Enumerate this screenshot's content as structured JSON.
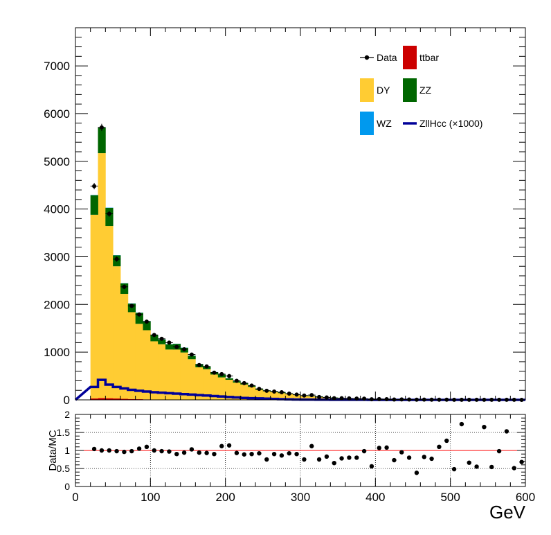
{
  "chart_data": [
    {
      "type": "bar",
      "stacked": true,
      "x_bin_width": 10,
      "xlim": [
        0,
        600
      ],
      "ylim": [
        0,
        7800
      ],
      "y_ticks": [
        "0",
        "1000",
        "2000",
        "3000",
        "4000",
        "5000",
        "6000",
        "7000"
      ],
      "y_tick_values": [
        0,
        1000,
        2000,
        3000,
        4000,
        5000,
        6000,
        7000
      ],
      "bin_low_edges": [
        20,
        30,
        40,
        50,
        60,
        70,
        80,
        90,
        100,
        110,
        120,
        130,
        140,
        150,
        160,
        170,
        180,
        190,
        200,
        210,
        220,
        230,
        240,
        250,
        260,
        270,
        280,
        290,
        300,
        310,
        320,
        330,
        340,
        350,
        360,
        370,
        380,
        390,
        400,
        410,
        420,
        430,
        440,
        450,
        460,
        470,
        480,
        490,
        500,
        510,
        520,
        530,
        540,
        550,
        560,
        570,
        580,
        590
      ],
      "series": [
        {
          "name": "ttbar",
          "color": "#cc0000",
          "values": [
            30,
            40,
            35,
            30,
            22,
            18,
            14,
            10,
            8,
            6,
            5,
            4,
            3,
            3,
            2,
            2,
            1,
            1,
            1,
            1,
            1,
            1,
            0,
            0,
            0,
            0,
            0,
            0,
            0,
            0,
            0,
            0,
            0,
            0,
            0,
            0,
            0,
            0,
            0,
            0,
            0,
            0,
            0,
            0,
            0,
            0,
            0,
            0,
            0,
            0,
            0,
            0,
            0,
            0,
            0,
            0,
            0,
            0
          ]
        },
        {
          "name": "DY",
          "color": "#ffcc33",
          "values": [
            3850,
            5130,
            3610,
            2770,
            2200,
            1820,
            1580,
            1450,
            1220,
            1160,
            1050,
            1050,
            990,
            850,
            680,
            640,
            530,
            470,
            420,
            360,
            320,
            270,
            210,
            180,
            160,
            140,
            120,
            100,
            80,
            75,
            65,
            50,
            45,
            38,
            33,
            28,
            25,
            21,
            18,
            15,
            13,
            11,
            10,
            8,
            7,
            6,
            5,
            4,
            4,
            3,
            3,
            2,
            2,
            2,
            2,
            1,
            1,
            1
          ]
        },
        {
          "name": "ZZ",
          "color": "#006600",
          "values": [
            410,
            540,
            380,
            230,
            220,
            180,
            230,
            190,
            130,
            100,
            110,
            120,
            100,
            70,
            70,
            60,
            50,
            60,
            30,
            30,
            30,
            25,
            25,
            20,
            18,
            16,
            13,
            12,
            10,
            9,
            8,
            7,
            6,
            5,
            4,
            4,
            3,
            3,
            3,
            2,
            2,
            2,
            2,
            1,
            1,
            1,
            1,
            1,
            1,
            1,
            1,
            1,
            1,
            1,
            1,
            0,
            0,
            0
          ]
        },
        {
          "name": "WZ",
          "color": "#0099ee",
          "values": [
            5,
            5,
            5,
            5,
            4,
            4,
            4,
            3,
            3,
            3,
            3,
            3,
            3,
            3,
            2,
            2,
            2,
            2,
            2,
            2,
            2,
            2,
            1,
            1,
            1,
            1,
            1,
            1,
            1,
            1,
            1,
            1,
            0,
            0,
            0,
            0,
            0,
            0,
            0,
            0,
            0,
            0,
            0,
            0,
            0,
            0,
            0,
            0,
            0,
            0,
            0,
            0,
            0,
            0,
            0,
            0,
            0,
            0
          ]
        }
      ],
      "signal": {
        "name": "ZllHcc (×1000)",
        "color": "#000099",
        "values": [
          270,
          420,
          320,
          270,
          240,
          210,
          190,
          175,
          160,
          150,
          140,
          130,
          120,
          110,
          100,
          90,
          80,
          70,
          60,
          50,
          40,
          35,
          30,
          25,
          20,
          15,
          10,
          8,
          6,
          5,
          4,
          3,
          2,
          2,
          1,
          1,
          1,
          0,
          0,
          0,
          0,
          0,
          0,
          0,
          0,
          0,
          0,
          0,
          0,
          0,
          0,
          0,
          0,
          0,
          0,
          0,
          0,
          0
        ]
      },
      "data": {
        "name": "Data",
        "x": [
          25,
          35,
          45,
          55,
          65,
          75,
          85,
          95,
          105,
          115,
          125,
          135,
          145,
          155,
          165,
          175,
          185,
          195,
          205,
          215,
          225,
          235,
          245,
          255,
          265,
          275,
          285,
          295,
          305,
          315,
          325,
          335,
          345,
          355,
          365,
          375,
          385,
          395,
          405,
          415,
          425,
          435,
          445,
          455,
          465,
          475,
          485,
          495,
          505,
          515,
          525,
          535,
          545,
          555,
          565,
          575,
          585,
          595
        ],
        "y": [
          4480,
          5710,
          3900,
          2950,
          2370,
          1970,
          1790,
          1640,
          1360,
          1280,
          1200,
          1110,
          1060,
          950,
          730,
          700,
          570,
          540,
          500,
          400,
          350,
          300,
          230,
          190,
          175,
          160,
          130,
          110,
          90,
          100,
          60,
          50,
          35,
          34,
          31,
          27,
          25,
          12,
          17,
          14,
          8,
          9,
          7,
          3,
          5,
          4,
          3,
          3,
          1,
          2,
          2,
          1,
          1,
          1,
          1,
          1,
          1,
          0
        ]
      },
      "legend": [
        {
          "label": "Data",
          "kind": "marker",
          "color": "#000000"
        },
        {
          "label": "ttbar",
          "kind": "box",
          "color": "#cc0000"
        },
        {
          "label": "DY",
          "kind": "box",
          "color": "#ffcc33"
        },
        {
          "label": "ZZ",
          "kind": "box",
          "color": "#006600"
        },
        {
          "label": "WZ",
          "kind": "box",
          "color": "#0099ee"
        },
        {
          "label": "ZllHcc (×1000)",
          "kind": "line",
          "color": "#000099"
        }
      ],
      "legend_position": "top-right"
    },
    {
      "type": "scatter",
      "ylabel": "Data/MC",
      "xlabel": "GeV",
      "xlim": [
        0,
        600
      ],
      "ylim": [
        0,
        2
      ],
      "x_ticks": [
        "0",
        "100",
        "200",
        "300",
        "400",
        "500",
        "600"
      ],
      "x_tick_values": [
        0,
        100,
        200,
        300,
        400,
        500,
        600
      ],
      "y_ticks": [
        "0",
        "0.5",
        "1",
        "1.5",
        "2"
      ],
      "y_tick_values": [
        0,
        0.5,
        1,
        1.5,
        2
      ],
      "grid": true,
      "reference_line": {
        "y": 1,
        "color": "#ff0000"
      },
      "x": [
        25,
        35,
        45,
        55,
        65,
        75,
        85,
        95,
        105,
        115,
        125,
        135,
        145,
        155,
        165,
        175,
        185,
        195,
        205,
        215,
        225,
        235,
        245,
        255,
        265,
        275,
        285,
        295,
        305,
        315,
        325,
        335,
        345,
        355,
        365,
        375,
        385,
        395,
        405,
        415,
        425,
        435,
        445,
        455,
        465,
        475,
        485,
        495,
        505,
        515,
        525,
        535,
        545,
        555,
        565,
        575,
        585,
        595
      ],
      "y": [
        1.04,
        1.0,
        1.0,
        0.98,
        0.96,
        0.98,
        1.05,
        1.1,
        1.0,
        0.98,
        0.97,
        0.9,
        0.94,
        1.03,
        0.94,
        0.93,
        0.9,
        1.12,
        1.14,
        0.93,
        0.89,
        0.9,
        0.92,
        0.75,
        0.9,
        0.86,
        0.92,
        0.9,
        0.75,
        1.12,
        0.75,
        0.83,
        0.65,
        0.78,
        0.8,
        0.8,
        0.98,
        0.56,
        1.07,
        1.08,
        0.73,
        0.95,
        0.8,
        0.38,
        0.82,
        0.77,
        1.1,
        1.27,
        0.48,
        1.73,
        0.66,
        0.55,
        1.65,
        0.54,
        0.98,
        1.53,
        0.51,
        0.68
      ]
    }
  ]
}
